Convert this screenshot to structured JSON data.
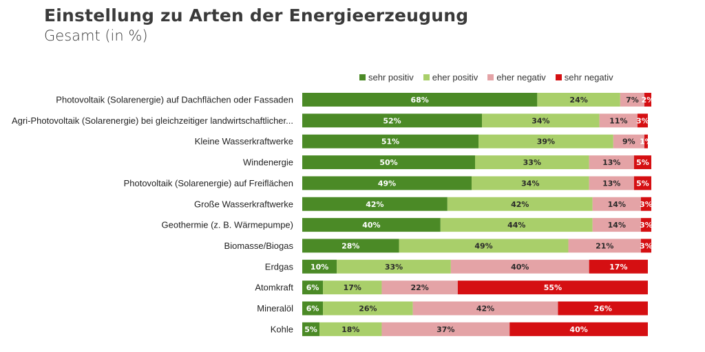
{
  "header": {
    "title": "Einstellung zu Arten der Energieerzeugung",
    "subtitle": "Gesamt (in %)"
  },
  "chart_data": {
    "type": "bar",
    "orientation": "horizontal",
    "stacked": true,
    "title": "Einstellung zu Arten der Energieerzeugung",
    "subtitle": "Gesamt (in %)",
    "xlabel": "",
    "ylabel": "",
    "xlim": [
      0,
      100
    ],
    "grid": false,
    "legend_position": "top-right",
    "categories": [
      "Photovoltaik (Solarenergie) auf Dachflächen oder Fassaden",
      "Agri-Photovoltaik (Solarenergie) bei gleichzeitiger landwirtschaftlicher...",
      "Kleine Wasserkraftwerke",
      "Windenergie",
      "Photovoltaik (Solarenergie) auf Freiflächen",
      "Große Wasserkraftwerke",
      "Geothermie (z. B. Wärmepumpe)",
      "Biomasse/Biogas",
      "Erdgas",
      "Atomkraft",
      "Mineralöl",
      "Kohle"
    ],
    "series": [
      {
        "name": "sehr positiv",
        "color": "#4b8a26",
        "label_color": "#ffffff",
        "values": [
          68,
          52,
          51,
          50,
          49,
          42,
          40,
          28,
          10,
          6,
          6,
          5
        ]
      },
      {
        "name": "eher positiv",
        "color": "#a9cf6a",
        "label_color": "#2a2a2a",
        "values": [
          24,
          34,
          39,
          33,
          34,
          42,
          44,
          49,
          33,
          17,
          26,
          18
        ]
      },
      {
        "name": "eher negativ",
        "color": "#e4a3a6",
        "label_color": "#2a2a2a",
        "values": [
          7,
          11,
          9,
          13,
          13,
          14,
          14,
          21,
          40,
          22,
          42,
          37
        ]
      },
      {
        "name": "sehr negativ",
        "color": "#d50f12",
        "label_color": "#ffffff",
        "values": [
          2,
          3,
          1,
          5,
          5,
          3,
          3,
          3,
          17,
          55,
          26,
          40
        ]
      }
    ],
    "value_suffix": "%"
  }
}
